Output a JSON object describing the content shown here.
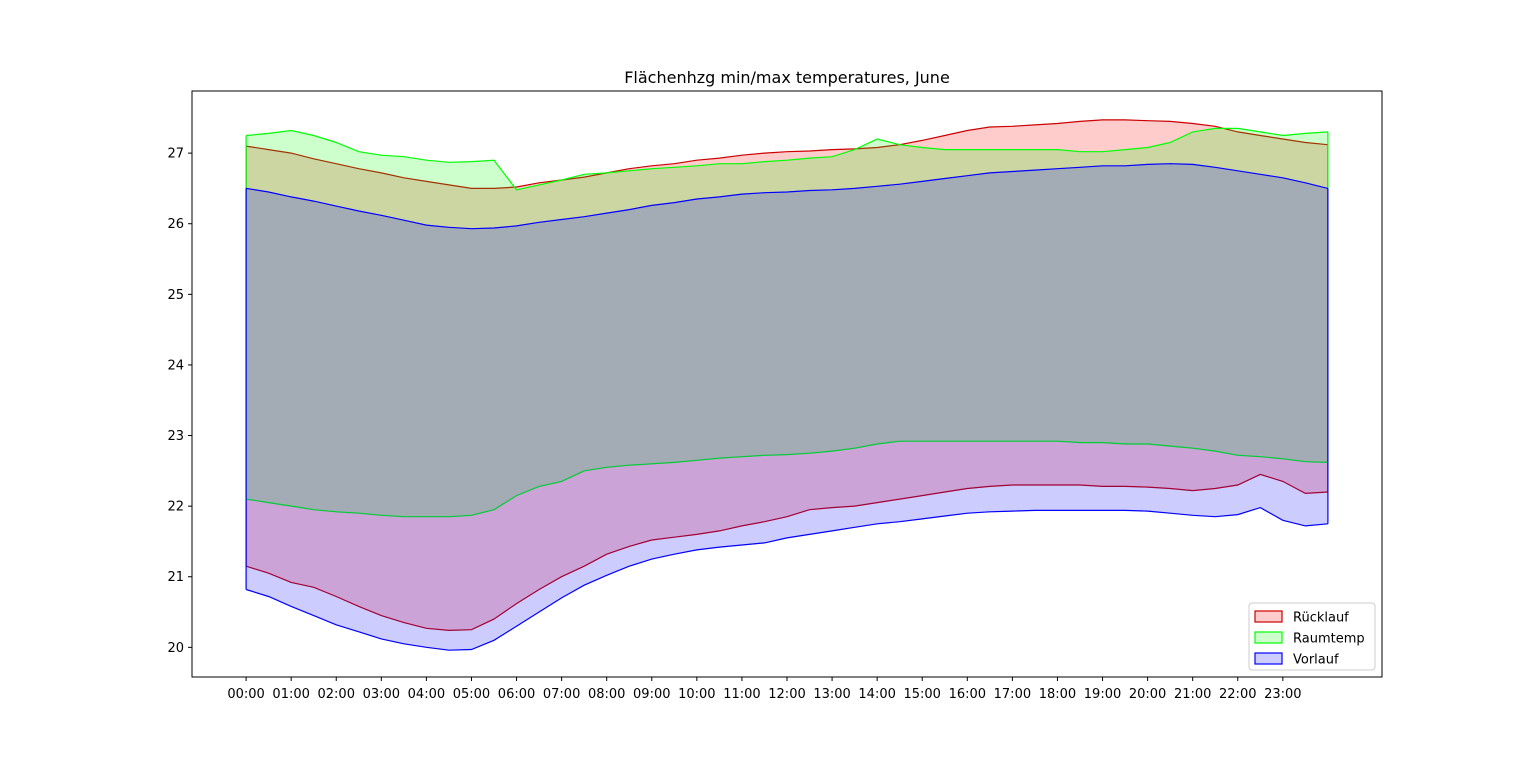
{
  "chart_data": {
    "type": "area",
    "title": "Flächenhzg min/max temperatures, June",
    "xlabel": "",
    "ylabel": "",
    "x_ticks": [
      "00:00",
      "01:00",
      "02:00",
      "03:00",
      "04:00",
      "05:00",
      "06:00",
      "07:00",
      "08:00",
      "09:00",
      "10:00",
      "11:00",
      "12:00",
      "13:00",
      "14:00",
      "15:00",
      "16:00",
      "17:00",
      "18:00",
      "19:00",
      "20:00",
      "21:00",
      "22:00",
      "23:00"
    ],
    "y_ticks": [
      20,
      21,
      22,
      23,
      24,
      25,
      26,
      27
    ],
    "xlim": [
      -1.2,
      25.2
    ],
    "ylim": [
      19.58,
      27.88
    ],
    "grid": false,
    "legend_position": "lower-right",
    "x_hours": [
      0,
      0.5,
      1,
      1.5,
      2,
      2.5,
      3,
      3.5,
      4,
      4.5,
      5,
      5.5,
      6,
      6.5,
      7,
      7.5,
      8,
      8.5,
      9,
      9.5,
      10,
      10.5,
      11,
      11.5,
      12,
      12.5,
      13,
      13.5,
      14,
      14.5,
      15,
      15.5,
      16,
      16.5,
      17,
      17.5,
      18,
      18.5,
      19,
      19.5,
      20,
      20.5,
      21,
      21.5,
      22,
      22.5,
      23,
      23.5,
      24
    ],
    "series": [
      {
        "name": "Rücklauf",
        "line_color": "#cc0000",
        "fill_color": "#ff0000",
        "fill_opacity": 0.2,
        "max": [
          27.1,
          27.05,
          27.0,
          26.92,
          26.85,
          26.78,
          26.72,
          26.65,
          26.6,
          26.55,
          26.5,
          26.5,
          26.52,
          26.58,
          26.62,
          26.66,
          26.72,
          26.78,
          26.82,
          26.85,
          26.9,
          26.93,
          26.97,
          27.0,
          27.02,
          27.03,
          27.05,
          27.06,
          27.08,
          27.12,
          27.18,
          27.25,
          27.32,
          27.37,
          27.38,
          27.4,
          27.42,
          27.45,
          27.47,
          27.47,
          27.46,
          27.45,
          27.42,
          27.38,
          27.3,
          27.25,
          27.2,
          27.15,
          27.12
        ],
        "min": [
          21.15,
          21.05,
          20.92,
          20.85,
          20.72,
          20.58,
          20.45,
          20.35,
          20.27,
          20.24,
          20.25,
          20.4,
          20.62,
          20.82,
          21.0,
          21.15,
          21.32,
          21.43,
          21.52,
          21.56,
          21.6,
          21.65,
          21.72,
          21.78,
          21.85,
          21.95,
          21.98,
          22.0,
          22.05,
          22.1,
          22.15,
          22.2,
          22.25,
          22.28,
          22.3,
          22.3,
          22.3,
          22.3,
          22.28,
          22.28,
          22.27,
          22.25,
          22.22,
          22.25,
          22.3,
          22.45,
          22.35,
          22.18,
          22.2
        ]
      },
      {
        "name": "Raumtemp",
        "line_color": "#00ff00",
        "fill_color": "#00ff00",
        "fill_opacity": 0.2,
        "max": [
          27.25,
          27.28,
          27.32,
          27.25,
          27.15,
          27.02,
          26.97,
          26.95,
          26.9,
          26.87,
          26.88,
          26.9,
          26.48,
          26.55,
          26.62,
          26.7,
          26.72,
          26.75,
          26.78,
          26.8,
          26.82,
          26.85,
          26.85,
          26.88,
          26.9,
          26.93,
          26.95,
          27.05,
          27.2,
          27.12,
          27.08,
          27.05,
          27.05,
          27.05,
          27.05,
          27.05,
          27.05,
          27.02,
          27.02,
          27.05,
          27.08,
          27.15,
          27.3,
          27.35,
          27.35,
          27.3,
          27.25,
          27.28,
          27.3
        ],
        "min": [
          22.1,
          22.05,
          22.0,
          21.95,
          21.92,
          21.9,
          21.87,
          21.85,
          21.85,
          21.85,
          21.87,
          21.95,
          22.15,
          22.28,
          22.35,
          22.5,
          22.55,
          22.58,
          22.6,
          22.62,
          22.65,
          22.68,
          22.7,
          22.72,
          22.73,
          22.75,
          22.78,
          22.82,
          22.88,
          22.92,
          22.92,
          22.92,
          22.92,
          22.92,
          22.92,
          22.92,
          22.92,
          22.9,
          22.9,
          22.88,
          22.88,
          22.85,
          22.82,
          22.78,
          22.72,
          22.7,
          22.67,
          22.63,
          22.62
        ]
      },
      {
        "name": "Vorlauf",
        "line_color": "#0000ff",
        "fill_color": "#0000ff",
        "fill_opacity": 0.2,
        "max": [
          26.5,
          26.45,
          26.38,
          26.32,
          26.25,
          26.18,
          26.12,
          26.05,
          25.98,
          25.95,
          25.93,
          25.94,
          25.97,
          26.02,
          26.06,
          26.1,
          26.15,
          26.2,
          26.26,
          26.3,
          26.35,
          26.38,
          26.42,
          26.44,
          26.45,
          26.47,
          26.48,
          26.5,
          26.53,
          26.56,
          26.6,
          26.64,
          26.68,
          26.72,
          26.74,
          26.76,
          26.78,
          26.8,
          26.82,
          26.82,
          26.84,
          26.85,
          26.84,
          26.8,
          26.75,
          26.7,
          26.65,
          26.58,
          26.5
        ],
        "min": [
          20.82,
          20.72,
          20.58,
          20.45,
          20.32,
          20.22,
          20.12,
          20.05,
          20.0,
          19.96,
          19.97,
          20.1,
          20.3,
          20.5,
          20.7,
          20.88,
          21.02,
          21.15,
          21.25,
          21.32,
          21.38,
          21.42,
          21.45,
          21.48,
          21.55,
          21.6,
          21.65,
          21.7,
          21.75,
          21.78,
          21.82,
          21.86,
          21.9,
          21.92,
          21.93,
          21.94,
          21.94,
          21.94,
          21.94,
          21.94,
          21.93,
          21.9,
          21.87,
          21.85,
          21.88,
          21.98,
          21.8,
          21.72,
          21.75
        ]
      }
    ]
  }
}
